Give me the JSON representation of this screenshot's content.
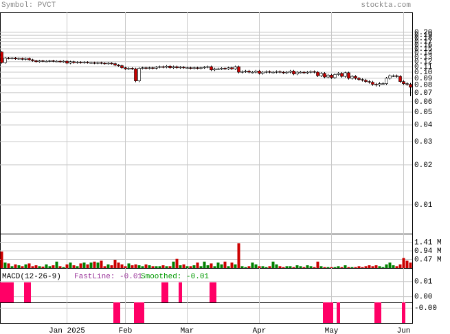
{
  "chart_data": [
    {
      "type": "candlestick",
      "title": "Symbol: PVCT",
      "source": "stockta.com",
      "log_scale": true,
      "grid": true,
      "up_color": "#ffffff",
      "down_color": "#cc0000",
      "ylim": [
        0.00606,
        0.2825
      ],
      "yticks": [
        {
          "value": 0.2,
          "label": "0.20"
        },
        0.19,
        0.18,
        0.17,
        0.16,
        0.15,
        0.14,
        0.13,
        0.12,
        0.11,
        {
          "value": 0.1,
          "label": "0.10"
        },
        0.09,
        0.08,
        0.07,
        0.06,
        0.05,
        0.04,
        0.03,
        0.02,
        0.01
      ],
      "categories": [
        null,
        null,
        null,
        null,
        null,
        null,
        null,
        null,
        null,
        null,
        null,
        null,
        null,
        null,
        null,
        null,
        null,
        null,
        null,
        "Jan 2025",
        null,
        null,
        null,
        null,
        null,
        null,
        null,
        null,
        null,
        null,
        null,
        null,
        null,
        null,
        null,
        null,
        "Feb",
        null,
        null,
        null,
        null,
        null,
        null,
        null,
        null,
        null,
        null,
        null,
        null,
        null,
        null,
        null,
        null,
        null,
        "Mar",
        null,
        null,
        null,
        null,
        null,
        null,
        null,
        null,
        null,
        null,
        null,
        null,
        null,
        null,
        null,
        null,
        null,
        null,
        null,
        null,
        "Apr",
        null,
        null,
        null,
        null,
        null,
        null,
        null,
        null,
        null,
        null,
        null,
        null,
        null,
        null,
        null,
        null,
        null,
        null,
        null,
        null,
        "May",
        null,
        null,
        null,
        null,
        null,
        null,
        null,
        null,
        null,
        null,
        null,
        null,
        null,
        null,
        null,
        null,
        null,
        null,
        null,
        null,
        "Jun",
        null,
        null
      ],
      "open": [
        0.142,
        0.118,
        0.128,
        0.127,
        0.128,
        0.126,
        0.127,
        0.125,
        0.127,
        0.124,
        0.122,
        0.12,
        0.122,
        0.121,
        0.121,
        0.122,
        0.121,
        0.121,
        0.12,
        0.121,
        0.117,
        0.12,
        0.118,
        0.119,
        0.118,
        0.119,
        0.118,
        0.118,
        0.117,
        0.118,
        0.117,
        0.116,
        0.117,
        0.116,
        0.113,
        0.112,
        0.108,
        0.106,
        0.107,
        0.106,
        0.086,
        0.107,
        0.108,
        0.107,
        0.108,
        0.107,
        0.109,
        0.11,
        0.109,
        0.111,
        0.108,
        0.11,
        0.108,
        0.109,
        0.108,
        0.108,
        0.107,
        0.108,
        0.107,
        0.108,
        0.109,
        0.11,
        0.104,
        0.106,
        0.106,
        0.107,
        0.106,
        0.108,
        0.106,
        0.11,
        0.1,
        0.101,
        0.102,
        0.1,
        0.1,
        0.102,
        0.098,
        0.1,
        0.101,
        0.1,
        0.1,
        0.101,
        0.1,
        0.099,
        0.1,
        0.102,
        0.097,
        0.1,
        0.1,
        0.099,
        0.1,
        0.101,
        0.1,
        0.094,
        0.098,
        0.092,
        0.095,
        0.091,
        0.096,
        0.098,
        0.093,
        0.099,
        0.09,
        0.093,
        0.09,
        0.088,
        0.087,
        0.085,
        0.084,
        0.081,
        0.08,
        0.082,
        0.082,
        0.09,
        0.094,
        0.094,
        0.093,
        0.085,
        0.082,
        0.081
      ],
      "high": [
        0.144,
        0.13,
        0.13,
        0.13,
        0.13,
        0.129,
        0.129,
        0.129,
        0.129,
        0.126,
        0.124,
        0.124,
        0.124,
        0.123,
        0.124,
        0.124,
        0.123,
        0.123,
        0.123,
        0.123,
        0.122,
        0.122,
        0.121,
        0.121,
        0.121,
        0.121,
        0.12,
        0.12,
        0.12,
        0.12,
        0.119,
        0.119,
        0.119,
        0.118,
        0.115,
        0.114,
        0.11,
        0.109,
        0.109,
        0.108,
        0.109,
        0.11,
        0.11,
        0.11,
        0.11,
        0.111,
        0.112,
        0.112,
        0.113,
        0.113,
        0.112,
        0.112,
        0.111,
        0.111,
        0.11,
        0.11,
        0.11,
        0.11,
        0.11,
        0.111,
        0.112,
        0.112,
        0.108,
        0.108,
        0.109,
        0.109,
        0.11,
        0.11,
        0.112,
        0.112,
        0.103,
        0.104,
        0.104,
        0.102,
        0.104,
        0.104,
        0.102,
        0.103,
        0.103,
        0.102,
        0.103,
        0.103,
        0.102,
        0.102,
        0.104,
        0.104,
        0.102,
        0.102,
        0.102,
        0.102,
        0.103,
        0.103,
        0.102,
        0.1,
        0.1,
        0.097,
        0.097,
        0.098,
        0.1,
        0.1,
        0.101,
        0.101,
        0.095,
        0.095,
        0.092,
        0.09,
        0.089,
        0.087,
        0.086,
        0.083,
        0.084,
        0.084,
        0.092,
        0.096,
        0.096,
        0.096,
        0.095,
        0.087,
        0.084,
        0.083
      ],
      "low": [
        0.116,
        0.116,
        0.125,
        0.125,
        0.124,
        0.124,
        0.123,
        0.123,
        0.122,
        0.12,
        0.118,
        0.118,
        0.119,
        0.119,
        0.119,
        0.119,
        0.119,
        0.118,
        0.118,
        0.115,
        0.115,
        0.116,
        0.116,
        0.116,
        0.116,
        0.116,
        0.116,
        0.115,
        0.115,
        0.115,
        0.114,
        0.114,
        0.114,
        0.111,
        0.11,
        0.106,
        0.104,
        0.104,
        0.104,
        0.084,
        0.084,
        0.105,
        0.105,
        0.105,
        0.105,
        0.105,
        0.107,
        0.107,
        0.107,
        0.106,
        0.106,
        0.106,
        0.106,
        0.106,
        0.106,
        0.105,
        0.105,
        0.105,
        0.105,
        0.106,
        0.107,
        0.102,
        0.102,
        0.104,
        0.104,
        0.104,
        0.104,
        0.104,
        0.104,
        0.098,
        0.098,
        0.099,
        0.098,
        0.098,
        0.098,
        0.096,
        0.096,
        0.098,
        0.098,
        0.098,
        0.098,
        0.098,
        0.097,
        0.097,
        0.098,
        0.095,
        0.095,
        0.098,
        0.097,
        0.097,
        0.098,
        0.098,
        0.092,
        0.092,
        0.09,
        0.09,
        0.089,
        0.089,
        0.094,
        0.091,
        0.091,
        0.088,
        0.088,
        0.088,
        0.086,
        0.085,
        0.083,
        0.082,
        0.079,
        0.078,
        0.078,
        0.08,
        0.08,
        0.088,
        0.092,
        0.091,
        0.083,
        0.08,
        0.079,
        0.066
      ],
      "close": [
        0.118,
        0.128,
        0.127,
        0.128,
        0.126,
        0.127,
        0.125,
        0.127,
        0.124,
        0.122,
        0.12,
        0.122,
        0.121,
        0.121,
        0.122,
        0.121,
        0.121,
        0.12,
        0.121,
        0.117,
        0.12,
        0.118,
        0.119,
        0.118,
        0.119,
        0.118,
        0.118,
        0.117,
        0.118,
        0.117,
        0.116,
        0.117,
        0.116,
        0.113,
        0.112,
        0.108,
        0.106,
        0.107,
        0.106,
        0.086,
        0.107,
        0.108,
        0.107,
        0.108,
        0.107,
        0.109,
        0.11,
        0.109,
        0.111,
        0.108,
        0.11,
        0.108,
        0.109,
        0.108,
        0.108,
        0.107,
        0.108,
        0.107,
        0.108,
        0.109,
        0.11,
        0.104,
        0.106,
        0.106,
        0.107,
        0.106,
        0.108,
        0.106,
        0.11,
        0.1,
        0.101,
        0.102,
        0.1,
        0.1,
        0.102,
        0.098,
        0.1,
        0.101,
        0.1,
        0.1,
        0.101,
        0.1,
        0.099,
        0.1,
        0.102,
        0.097,
        0.1,
        0.1,
        0.099,
        0.1,
        0.101,
        0.1,
        0.094,
        0.098,
        0.092,
        0.095,
        0.091,
        0.096,
        0.098,
        0.093,
        0.099,
        0.09,
        0.093,
        0.09,
        0.088,
        0.087,
        0.085,
        0.084,
        0.081,
        0.08,
        0.082,
        0.082,
        0.09,
        0.094,
        0.094,
        0.093,
        0.085,
        0.082,
        0.081,
        0.077
      ]
    },
    {
      "type": "bar",
      "up_color": "#008000",
      "down_color": "#cc0000",
      "ylim": [
        0,
        1.88
      ],
      "yticks": [
        {
          "value": 1.41,
          "label": "1.41 M"
        },
        {
          "value": 0.94,
          "label": "0.94 M"
        },
        {
          "value": 0.47,
          "label": "0.47 M"
        }
      ],
      "values": [
        0.9,
        0.3,
        0.25,
        0.1,
        0.2,
        0.15,
        0.1,
        0.2,
        0.25,
        0.1,
        0.15,
        0.1,
        0.08,
        0.2,
        0.1,
        0.15,
        0.35,
        0.1,
        0.05,
        0.2,
        0.3,
        0.15,
        0.1,
        0.25,
        0.3,
        0.2,
        0.3,
        0.35,
        0.3,
        0.4,
        0.1,
        0.2,
        0.15,
        0.45,
        0.3,
        0.2,
        0.1,
        0.25,
        0.15,
        0.2,
        0.15,
        0.1,
        0.2,
        0.15,
        0.1,
        0.1,
        0.1,
        0.15,
        0.1,
        0.1,
        0.35,
        0.5,
        0.15,
        0.2,
        0.1,
        0.1,
        0.15,
        0.3,
        0.1,
        0.35,
        0.15,
        0.25,
        0.1,
        0.3,
        0.2,
        0.35,
        0.1,
        0.3,
        0.2,
        1.35,
        0.1,
        0.05,
        0.1,
        0.3,
        0.2,
        0.1,
        0.1,
        0.05,
        0.1,
        0.35,
        0.2,
        0.1,
        0.05,
        0.1,
        0.1,
        0.05,
        0.15,
        0.1,
        0.05,
        0.15,
        0.1,
        0.05,
        0.35,
        0.1,
        0.05,
        0.05,
        0.05,
        0.05,
        0.1,
        0.05,
        0.15,
        0.05,
        0.05,
        0.05,
        0.1,
        0.05,
        0.1,
        0.15,
        0.1,
        0.15,
        0.1,
        0.05,
        0.2,
        0.3,
        0.15,
        0.1,
        0.2,
        0.55,
        0.4,
        0.3
      ]
    },
    {
      "type": "bar",
      "title": "MACD(12-26-9)",
      "color": "#ff0066",
      "annotations": [
        {
          "text": "FastLine: -0.01",
          "color": "#993399"
        },
        {
          "text": "Smoothed: -0.01",
          "color": "#009900"
        }
      ],
      "ylim": [
        -0.0038,
        0.019
      ],
      "yticks": [
        0.01,
        {
          "value": 0,
          "label": "0.00"
        }
      ],
      "values": [
        0.0095,
        0.0095,
        0.0095,
        0.0095,
        null,
        null,
        null,
        0.0095,
        0.0095,
        null,
        null,
        null,
        null,
        null,
        null,
        null,
        null,
        null,
        null,
        null,
        null,
        null,
        null,
        null,
        null,
        null,
        null,
        null,
        null,
        null,
        null,
        null,
        null,
        null,
        null,
        null,
        null,
        null,
        null,
        null,
        null,
        null,
        null,
        null,
        null,
        null,
        null,
        0.0095,
        0.0095,
        null,
        null,
        null,
        0.0095,
        null,
        null,
        null,
        null,
        null,
        null,
        null,
        null,
        0.0095,
        0.0095,
        null,
        null,
        null,
        null,
        null,
        null,
        null,
        null,
        null,
        null,
        null,
        null,
        null,
        null,
        null,
        null,
        null,
        null,
        null,
        null,
        null,
        null,
        null,
        null,
        null,
        null,
        null,
        null,
        null,
        null,
        null,
        null,
        null,
        null,
        null,
        null,
        null,
        null,
        null,
        null,
        null,
        null,
        null,
        null,
        null,
        null,
        null,
        null,
        null,
        null,
        null,
        null,
        null,
        null,
        null,
        null,
        null
      ]
    },
    {
      "type": "bar",
      "color": "#ff0066",
      "ylim": [
        -0.0075,
        0.0015
      ],
      "yticks": [
        {
          "value": -0.001,
          "label": "-0.00"
        }
      ],
      "values": [
        null,
        null,
        null,
        null,
        null,
        null,
        null,
        null,
        null,
        null,
        null,
        null,
        null,
        null,
        null,
        null,
        null,
        null,
        null,
        null,
        null,
        null,
        null,
        null,
        null,
        null,
        null,
        null,
        null,
        null,
        null,
        null,
        null,
        0.0015,
        0.0015,
        null,
        null,
        null,
        null,
        0.0015,
        0.0015,
        0.0015,
        null,
        null,
        null,
        null,
        null,
        null,
        null,
        null,
        null,
        null,
        null,
        null,
        null,
        null,
        null,
        null,
        null,
        null,
        null,
        null,
        null,
        null,
        null,
        null,
        null,
        null,
        null,
        null,
        null,
        null,
        null,
        null,
        null,
        null,
        null,
        null,
        null,
        null,
        null,
        null,
        null,
        null,
        null,
        null,
        null,
        null,
        null,
        null,
        null,
        null,
        null,
        null,
        0.0015,
        0.0015,
        0.0015,
        null,
        0.0015,
        null,
        null,
        null,
        null,
        null,
        null,
        null,
        null,
        null,
        null,
        0.0015,
        0.0015,
        null,
        null,
        null,
        null,
        null,
        null,
        0.0015,
        null,
        null
      ]
    }
  ]
}
